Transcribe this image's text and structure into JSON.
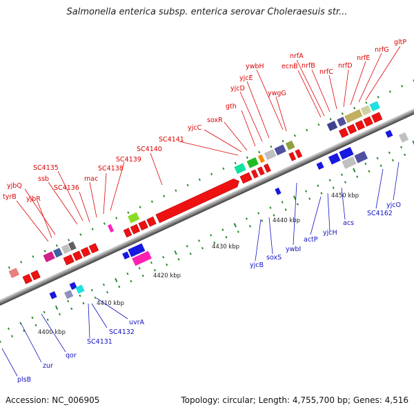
{
  "title": "Salmonella enterica subsp. enterica serovar Choleraesuis str...",
  "footer": {
    "accession": "Accession: NC_006905",
    "summary": "Topology: circular; Length: 4,755,700 bp; Genes: 4,516"
  },
  "colors": {
    "forward_label": "#dd0000",
    "reverse_label": "#1010c0",
    "backbone": "#888888",
    "tick": "#2a8a2a"
  },
  "scale_labels": [
    {
      "text": "4400 kbp",
      "kbp": 4400
    },
    {
      "text": "4410 kbp",
      "kbp": 4410
    },
    {
      "text": "4420 kbp",
      "kbp": 4420
    },
    {
      "text": "4430 kbp",
      "kbp": 4430
    },
    {
      "text": "4440 kbp",
      "kbp": 4440
    },
    {
      "text": "4450 kbp",
      "kbp": 4450
    }
  ],
  "forward_genes": [
    "tyrB",
    "yjbQ",
    "yjbR",
    "ssb",
    "SC4135",
    "SC4136",
    "mac",
    "SC4138",
    "SC4139",
    "SC4140",
    "SC4141",
    "yjcC",
    "soxR",
    "gth",
    "yjcD",
    "yjcE",
    "ywbH",
    "ywgG",
    "ecnB",
    "nrfA",
    "nrfB",
    "nrfC",
    "nrfD",
    "nrfE",
    "nrfG",
    "gltP"
  ],
  "reverse_genes": [
    "plsB",
    "zur",
    "qor",
    "SC4131",
    "SC4132",
    "uvrA",
    "yjcB",
    "soxS",
    "ywbI",
    "actP",
    "yjcH",
    "acs",
    "SC4162",
    "yjcO"
  ]
}
